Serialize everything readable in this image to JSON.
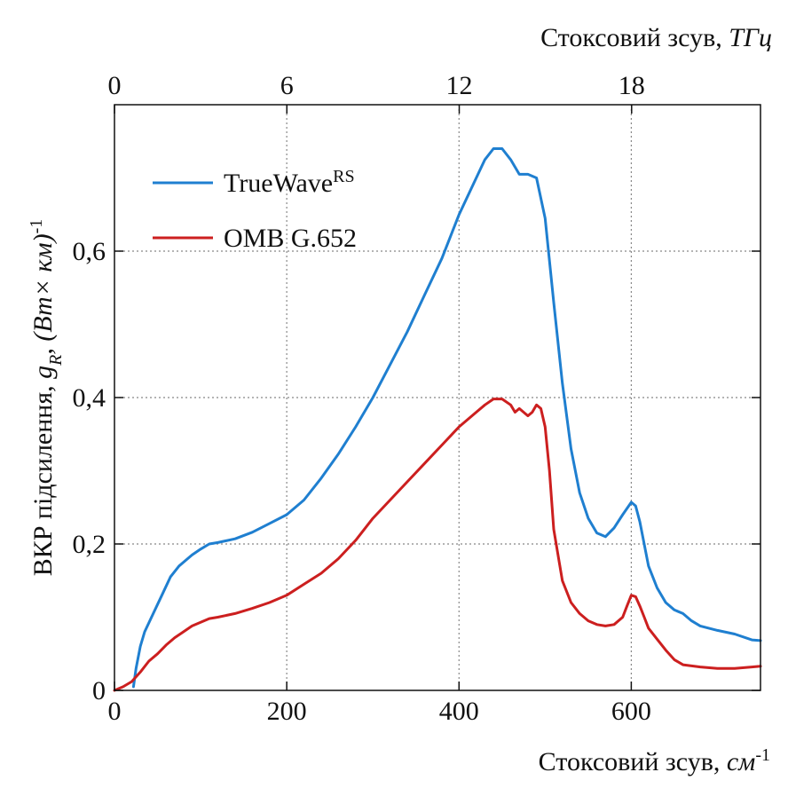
{
  "chart_data": {
    "type": "line",
    "xlabel_prefix": "Стоксовий зсув, ",
    "xlabel_unit": "см",
    "xlabel_unit_sup": "-1",
    "xlabel_top_prefix": "Стоксовий зсув, ",
    "xlabel_top_unit": "ТГц",
    "ylabel_prefix": "ВКР підсилення, ",
    "ylabel_sym": "g",
    "ylabel_sym_sub": "R",
    "ylabel_unit": ", (Вт× км)",
    "ylabel_unit_sup": "-1",
    "xlim": [
      0,
      750
    ],
    "ylim": [
      0,
      0.8
    ],
    "x_ticks": [
      0,
      200,
      400,
      600
    ],
    "x_tick_labels": [
      "0",
      "200",
      "400",
      "600"
    ],
    "x_top_ticks": [
      0,
      6,
      12,
      18
    ],
    "x_top_tick_labels": [
      "0",
      "6",
      "12",
      "18"
    ],
    "top_axis_factor_thz_per_cm": 0.02998,
    "y_ticks": [
      0,
      0.2,
      0.4,
      0.6
    ],
    "y_tick_labels": [
      "0",
      "0,2",
      "0,4",
      "0,6"
    ],
    "grid": true,
    "legend_position": "top-left",
    "series": [
      {
        "name": "TrueWave",
        "name_sup": "RS",
        "color": "#1f7fd0",
        "x": [
          22,
          25,
          30,
          35,
          45,
          55,
          65,
          75,
          90,
          100,
          110,
          120,
          140,
          160,
          180,
          200,
          220,
          240,
          260,
          280,
          300,
          320,
          340,
          360,
          380,
          400,
          420,
          430,
          440,
          450,
          460,
          470,
          480,
          490,
          500,
          510,
          520,
          530,
          540,
          550,
          560,
          570,
          580,
          590,
          600,
          605,
          610,
          620,
          630,
          640,
          650,
          660,
          670,
          680,
          700,
          720,
          740,
          750
        ],
        "y": [
          0.005,
          0.03,
          0.06,
          0.08,
          0.105,
          0.13,
          0.155,
          0.17,
          0.185,
          0.193,
          0.2,
          0.202,
          0.207,
          0.216,
          0.228,
          0.24,
          0.26,
          0.29,
          0.323,
          0.36,
          0.4,
          0.445,
          0.49,
          0.54,
          0.59,
          0.65,
          0.7,
          0.725,
          0.74,
          0.74,
          0.725,
          0.705,
          0.705,
          0.7,
          0.645,
          0.53,
          0.42,
          0.33,
          0.27,
          0.235,
          0.215,
          0.21,
          0.222,
          0.24,
          0.257,
          0.252,
          0.23,
          0.17,
          0.14,
          0.12,
          0.11,
          0.105,
          0.095,
          0.088,
          0.082,
          0.077,
          0.069,
          0.068
        ]
      },
      {
        "name": "ОМВ G.652",
        "name_sup": "",
        "color": "#cc1f1f",
        "x": [
          0,
          10,
          20,
          30,
          40,
          50,
          60,
          70,
          80,
          90,
          100,
          110,
          120,
          140,
          160,
          180,
          200,
          220,
          240,
          260,
          280,
          300,
          320,
          340,
          360,
          380,
          400,
          420,
          430,
          440,
          450,
          460,
          465,
          470,
          480,
          485,
          490,
          495,
          500,
          505,
          510,
          520,
          530,
          540,
          550,
          560,
          570,
          580,
          590,
          595,
          600,
          605,
          610,
          615,
          620,
          630,
          640,
          650,
          660,
          680,
          700,
          720,
          740,
          750
        ],
        "y": [
          0.0,
          0.005,
          0.012,
          0.025,
          0.04,
          0.05,
          0.062,
          0.072,
          0.08,
          0.088,
          0.093,
          0.098,
          0.1,
          0.105,
          0.112,
          0.12,
          0.13,
          0.145,
          0.16,
          0.18,
          0.205,
          0.235,
          0.26,
          0.285,
          0.31,
          0.335,
          0.36,
          0.38,
          0.39,
          0.398,
          0.398,
          0.39,
          0.38,
          0.385,
          0.375,
          0.38,
          0.39,
          0.385,
          0.36,
          0.3,
          0.22,
          0.15,
          0.12,
          0.105,
          0.095,
          0.09,
          0.088,
          0.09,
          0.1,
          0.115,
          0.13,
          0.128,
          0.115,
          0.1,
          0.085,
          0.07,
          0.055,
          0.042,
          0.035,
          0.032,
          0.03,
          0.03,
          0.032,
          0.033
        ]
      }
    ]
  }
}
